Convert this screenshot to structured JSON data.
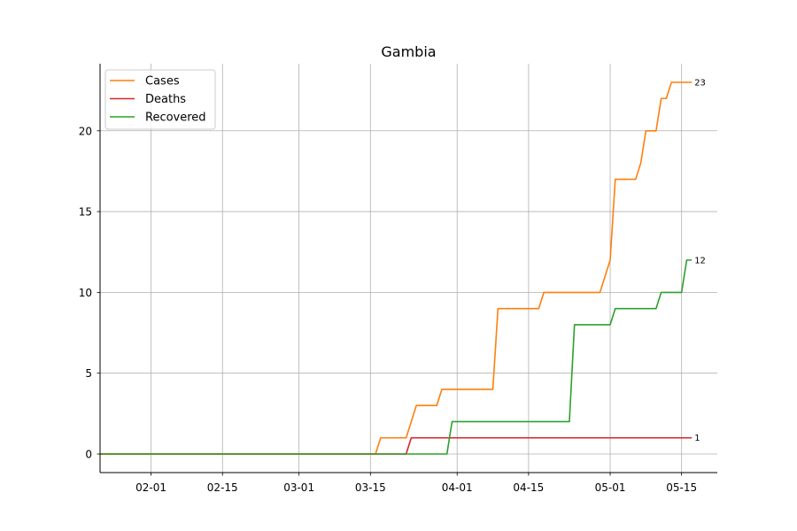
{
  "chart_data": {
    "type": "line",
    "title": "Gambia",
    "xlabel": "",
    "ylabel": "",
    "x_axis": {
      "type": "date",
      "range": [
        "2020-01-22",
        "2020-05-22"
      ],
      "tick_labels": [
        "02-01",
        "02-15",
        "03-01",
        "03-15",
        "04-01",
        "04-15",
        "05-01",
        "05-15"
      ],
      "tick_dates": [
        "2020-02-01",
        "2020-02-15",
        "2020-03-01",
        "2020-03-15",
        "2020-04-01",
        "2020-04-15",
        "2020-05-01",
        "2020-05-15"
      ]
    },
    "y_axis": {
      "range": [
        -1.15,
        24.15
      ],
      "tick_labels": [
        "0",
        "5",
        "10",
        "15",
        "20"
      ],
      "tick_values": [
        0,
        5,
        10,
        15,
        20
      ]
    },
    "grid": true,
    "legend": "top-left",
    "series": [
      {
        "name": "Cases",
        "color": "#ff7f0e",
        "end_label": "23",
        "points": [
          [
            "2020-01-22",
            0
          ],
          [
            "2020-03-16",
            0
          ],
          [
            "2020-03-17",
            1
          ],
          [
            "2020-03-22",
            1
          ],
          [
            "2020-03-24",
            3
          ],
          [
            "2020-03-28",
            3
          ],
          [
            "2020-03-29",
            4
          ],
          [
            "2020-04-08",
            4
          ],
          [
            "2020-04-09",
            9
          ],
          [
            "2020-04-17",
            9
          ],
          [
            "2020-04-18",
            10
          ],
          [
            "2020-04-29",
            10
          ],
          [
            "2020-05-01",
            12
          ],
          [
            "2020-05-02",
            17
          ],
          [
            "2020-05-06",
            17
          ],
          [
            "2020-05-07",
            18
          ],
          [
            "2020-05-08",
            20
          ],
          [
            "2020-05-10",
            20
          ],
          [
            "2020-05-11",
            22
          ],
          [
            "2020-05-12",
            22
          ],
          [
            "2020-05-13",
            23
          ],
          [
            "2020-05-17",
            23
          ]
        ]
      },
      {
        "name": "Deaths",
        "color": "#d62728",
        "end_label": "1",
        "points": [
          [
            "2020-01-22",
            0
          ],
          [
            "2020-03-22",
            0
          ],
          [
            "2020-03-23",
            1
          ],
          [
            "2020-05-17",
            1
          ]
        ]
      },
      {
        "name": "Recovered",
        "color": "#2ca02c",
        "end_label": "12",
        "points": [
          [
            "2020-01-22",
            0
          ],
          [
            "2020-03-30",
            0
          ],
          [
            "2020-03-31",
            2
          ],
          [
            "2020-04-23",
            2
          ],
          [
            "2020-04-24",
            8
          ],
          [
            "2020-04-30",
            8
          ],
          [
            "2020-05-01",
            8
          ],
          [
            "2020-05-02",
            9
          ],
          [
            "2020-05-10",
            9
          ],
          [
            "2020-05-11",
            10
          ],
          [
            "2020-05-15",
            10
          ],
          [
            "2020-05-16",
            12
          ],
          [
            "2020-05-17",
            12
          ]
        ]
      }
    ]
  }
}
